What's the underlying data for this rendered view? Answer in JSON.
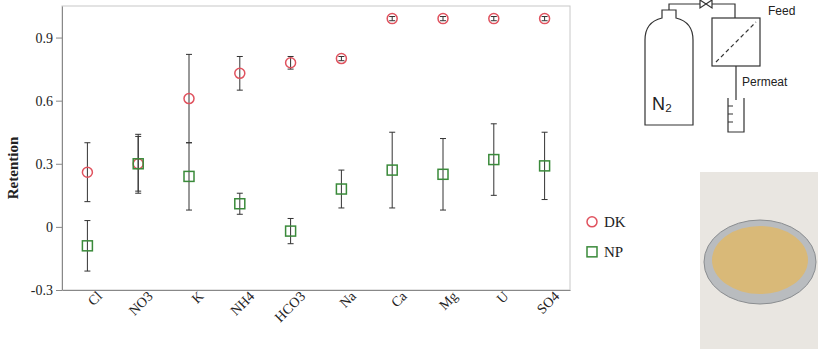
{
  "chart_data": {
    "type": "scatter",
    "y_label": "Retention",
    "categories": [
      "Cl",
      "NO3",
      "K",
      "NH4",
      "HCO3",
      "Na",
      "Ca",
      "Mg",
      "U",
      "SO4"
    ],
    "series": [
      {
        "name": "DK",
        "color": "#e0525e",
        "marker": "circle",
        "values": [
          0.26,
          0.3,
          0.61,
          0.73,
          0.78,
          0.8,
          0.99,
          0.99,
          0.99,
          0.99
        ],
        "errors": [
          0.14,
          0.13,
          0.21,
          0.08,
          0.03,
          0.01,
          0.01,
          0.01,
          0.01,
          0.01
        ]
      },
      {
        "name": "NP",
        "color": "#3a8a3a",
        "marker": "square",
        "values": [
          -0.09,
          0.3,
          0.24,
          0.11,
          -0.02,
          0.18,
          0.27,
          0.25,
          0.32,
          0.29
        ],
        "errors": [
          0.12,
          0.14,
          0.16,
          0.05,
          0.06,
          0.09,
          0.18,
          0.17,
          0.17,
          0.16
        ]
      }
    ],
    "ylim": [
      -0.3,
      1.05
    ],
    "yticks": [
      -0.3,
      0,
      0.3,
      0.6,
      0.9
    ],
    "legend": "right",
    "grid": false
  },
  "diagram": {
    "gas": "N₂",
    "feed": "Feed",
    "permeate": "Permeat"
  }
}
